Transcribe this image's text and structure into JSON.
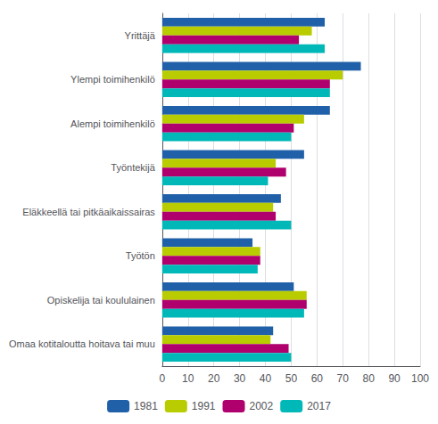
{
  "chart_data": {
    "type": "bar",
    "orientation": "horizontal",
    "categories": [
      "Yrittäjä",
      "Ylempi toimihenkilö",
      "Alempi toimihenkilö",
      "Työntekijä",
      "Eläkkeellä tai pitkäaikaissairas",
      "Työtön",
      "Opiskelija tai koululainen",
      "Omaa kotitaloutta hoitava tai muu"
    ],
    "series": [
      {
        "name": "1981",
        "color": "#2060a8",
        "values": [
          63,
          77,
          65,
          55,
          46,
          35,
          51,
          43
        ]
      },
      {
        "name": "1991",
        "color": "#b8cc00",
        "values": [
          58,
          70,
          55,
          44,
          43,
          38,
          56,
          42
        ]
      },
      {
        "name": "2002",
        "color": "#b0006e",
        "values": [
          53,
          65,
          51,
          48,
          44,
          38,
          56,
          49
        ]
      },
      {
        "name": "2017",
        "color": "#00b8b8",
        "values": [
          63,
          65,
          50,
          41,
          50,
          37,
          55,
          50
        ]
      }
    ],
    "xlim": [
      0,
      100
    ],
    "xticks": [
      0,
      10,
      20,
      30,
      40,
      50,
      60,
      70,
      80,
      90,
      100
    ],
    "grid": true,
    "legend": "bottom"
  }
}
